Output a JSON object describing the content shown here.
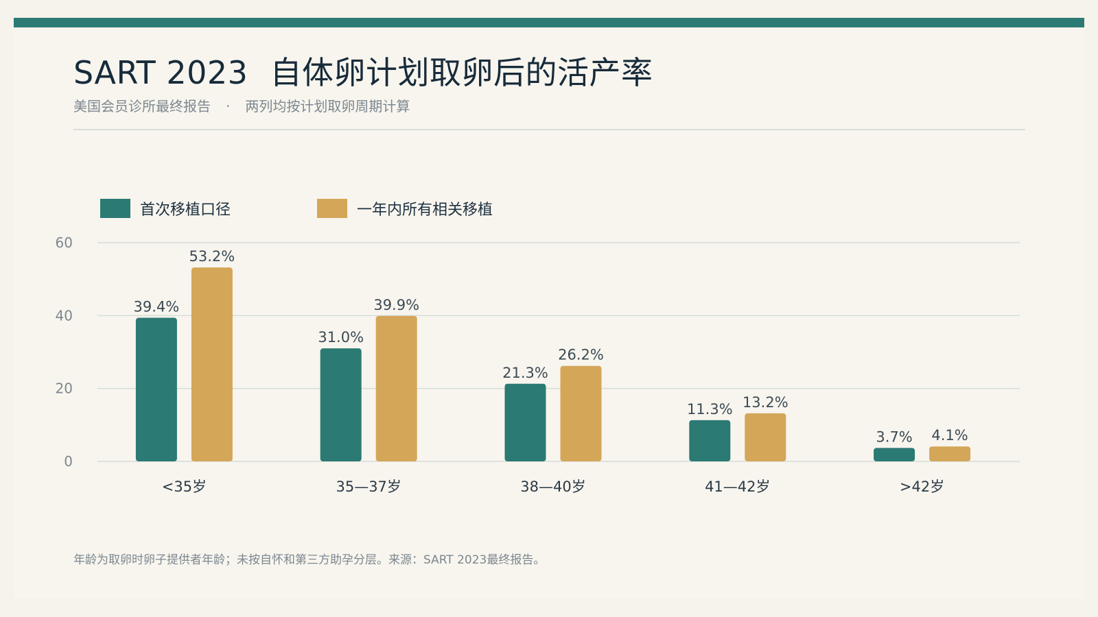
{
  "header": {
    "title_main": "SART 2023",
    "title_rest": "自体卵计划取卵后的活产率",
    "subtitle_left": "美国会员诊所最终报告",
    "subtitle_sep": "·",
    "subtitle_right": "两列均按计划取卵周期计算"
  },
  "footnote": "年龄为取卵时卵子提供者年龄；未按自怀和第三方助孕分层。来源：SART 2023最终报告。",
  "colors": {
    "accent": "#2b7a73",
    "series_1": "#2b7a73",
    "series_2": "#d4a658",
    "grid": "#d5dcd9",
    "text_muted": "#7b8790"
  },
  "chart_data": {
    "type": "bar",
    "title": "SART 2023 自体卵计划取卵后的活产率",
    "xlabel": "",
    "ylabel": "",
    "categories": [
      "<35岁",
      "35—37岁",
      "38—40岁",
      "41—42岁",
      ">42岁"
    ],
    "series": [
      {
        "name": "首次移植口径",
        "values": [
          39.4,
          31.0,
          21.3,
          11.3,
          3.7
        ],
        "labels": [
          "39.4%",
          "31.0%",
          "21.3%",
          "11.3%",
          "3.7%"
        ]
      },
      {
        "name": "一年内所有相关移植",
        "values": [
          53.2,
          39.9,
          26.2,
          13.2,
          4.1
        ],
        "labels": [
          "53.2%",
          "39.9%",
          "26.2%",
          "13.2%",
          "4.1%"
        ]
      }
    ],
    "ylim": [
      0,
      60
    ],
    "yticks": [
      0,
      20,
      40,
      60
    ],
    "grid": true,
    "legend_position": "top-left"
  }
}
